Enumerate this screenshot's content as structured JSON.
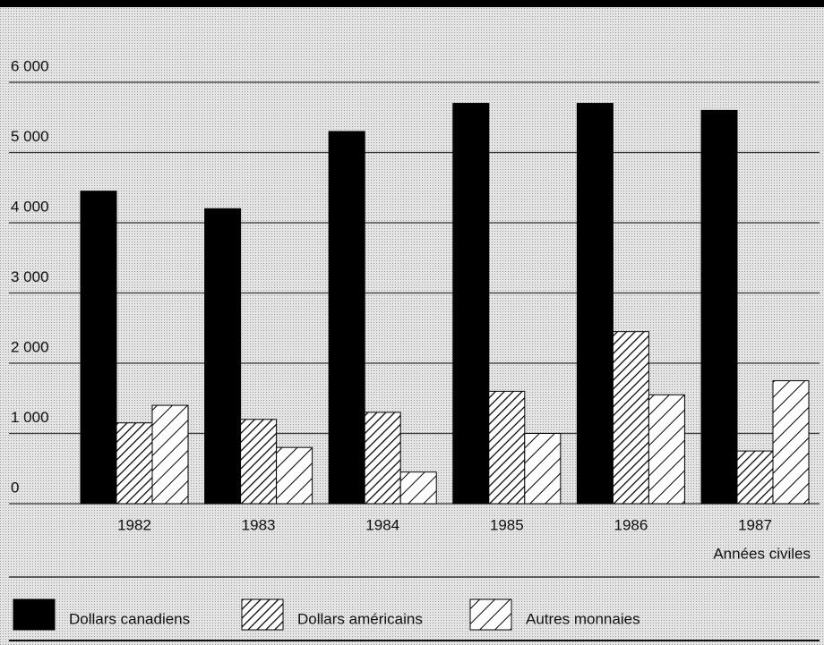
{
  "chart_data": {
    "type": "bar",
    "categories": [
      "1982",
      "1983",
      "1984",
      "1985",
      "1986",
      "1987"
    ],
    "x_label": "Années civiles",
    "series": [
      {
        "name": "Dollars canadiens",
        "color": "#000000",
        "fill": "solid",
        "values": [
          4450,
          4200,
          5300,
          5700,
          5700,
          5600
        ]
      },
      {
        "name": "Dollars américains",
        "color": "#000000",
        "fill": "hatch-dense",
        "values": [
          1150,
          1200,
          1300,
          1600,
          2450,
          750
        ]
      },
      {
        "name": "Autres monnaies",
        "color": "#000000",
        "fill": "hatch-sparse",
        "values": [
          1400,
          800,
          450,
          1000,
          1550,
          1750
        ]
      }
    ],
    "ylim": [
      0,
      6000
    ],
    "yticks": [
      0,
      {
        "value": 1000,
        "label": "1 000"
      },
      {
        "value": 2000,
        "label": "2 000"
      },
      {
        "value": 3000,
        "label": "3 000"
      },
      {
        "value": 4000,
        "label": "4 000"
      },
      {
        "value": 5000,
        "label": "5 000"
      },
      {
        "value": 6000,
        "label": "6 000"
      }
    ],
    "grid": true
  }
}
